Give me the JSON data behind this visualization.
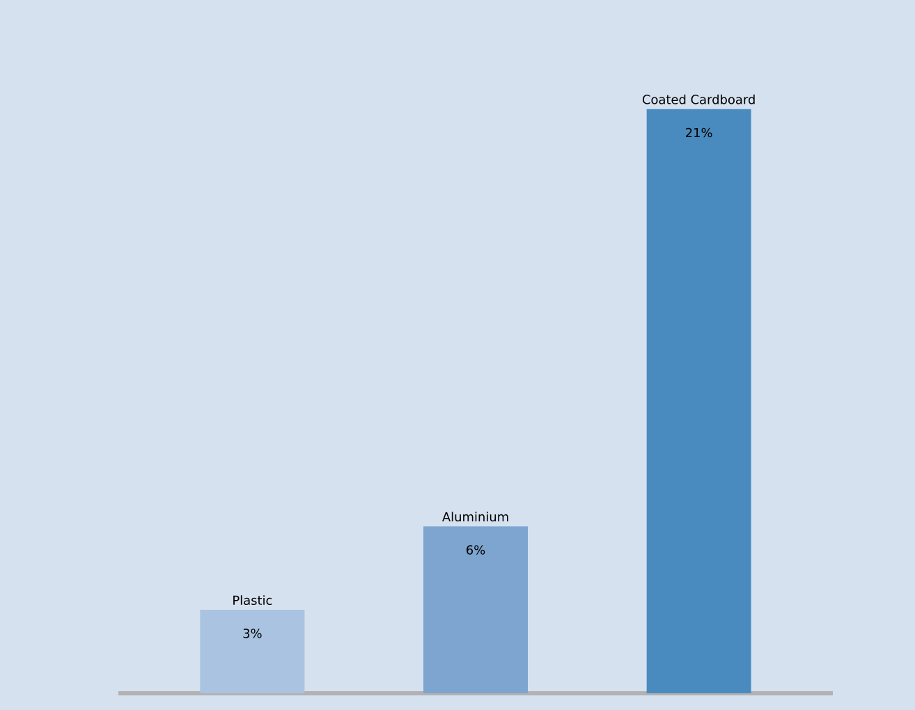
{
  "chart_data": {
    "type": "bar",
    "categories": [
      "Plastic",
      "Aluminium",
      "Coated Cardboard"
    ],
    "values": [
      3,
      6,
      21
    ],
    "colors": [
      "#a9c3e0",
      "#7ea5d0",
      "#4a8bbf"
    ],
    "value_labels": [
      "3%",
      "6%",
      "21%"
    ]
  }
}
